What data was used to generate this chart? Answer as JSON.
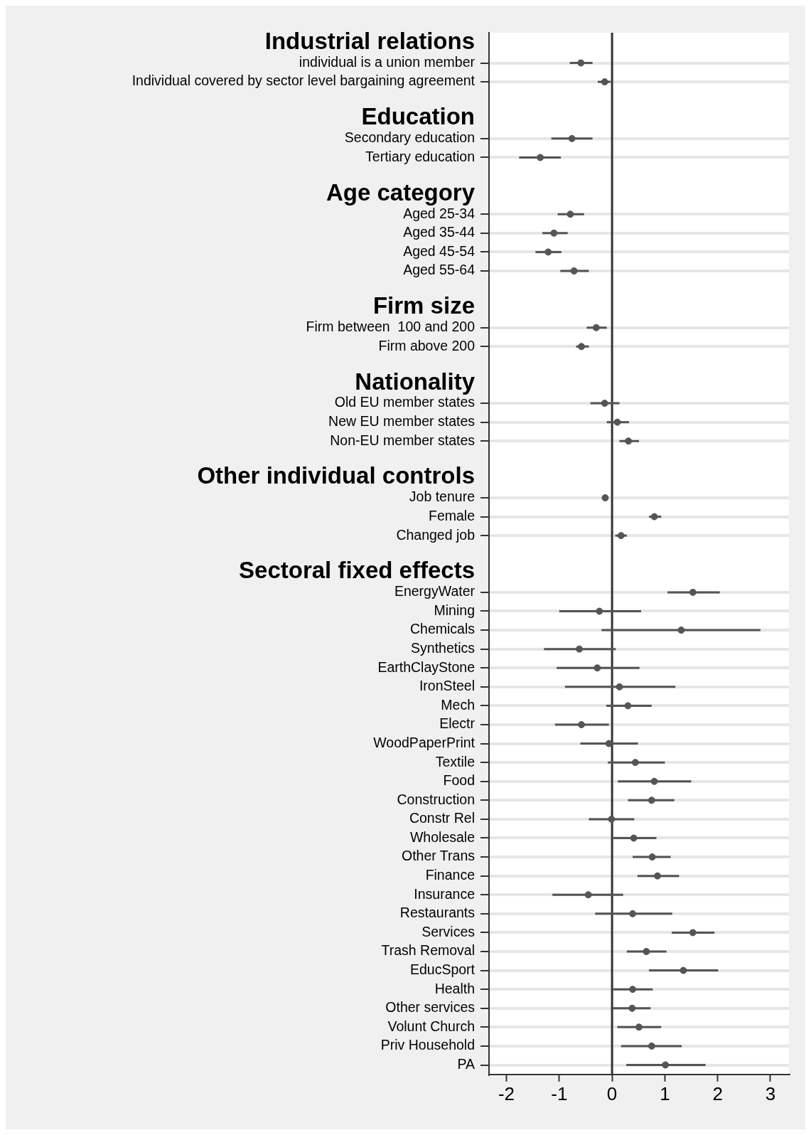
{
  "chart_data": {
    "type": "scatter",
    "orientation": "horizontal",
    "color": "#555555",
    "marker": "circle",
    "grid": "y",
    "xlim": [
      -2.33,
      3.35
    ],
    "xticks": [
      -2,
      -1,
      0,
      1,
      2,
      3
    ],
    "ref_lines": [
      {
        "axis": "x",
        "value": 0,
        "color": "#333333"
      }
    ],
    "annotations": [
      "Industrial relations",
      "Education",
      "Age category",
      "Firm size",
      "Nationality",
      "Other individual controls",
      "Sectoral fixed effects"
    ],
    "categories": [
      null,
      "individual is a union member",
      "Individual covered by sector level bargaining agreement",
      null,
      null,
      "Secondary education",
      "Tertiary education",
      null,
      null,
      "Aged 25-34",
      "Aged 35-44",
      "Aged 45-54",
      "Aged 55-64",
      null,
      null,
      "Firm between  100 and 200",
      "Firm above 200",
      null,
      null,
      "Old EU member states",
      "New EU member states",
      "Non-EU member states",
      null,
      null,
      "Job tenure",
      "Female",
      "Changed job",
      null,
      null,
      "EnergyWater",
      "Mining",
      "Chemicals",
      "Synthetics",
      "EarthClayStone",
      "IronSteel",
      "Mech",
      "Electr",
      "WoodPaperPrint",
      "Textile",
      "Food",
      "Construction",
      "Constr Rel",
      "Wholesale",
      "Other Trans",
      "Finance",
      "Insurance",
      "Restaurants",
      "Services",
      "Trash Removal",
      "EducSport",
      "Health",
      "Other services",
      "Volunt Church",
      "Priv Household",
      "PA"
    ],
    "values": [
      null,
      -0.59,
      -0.14,
      null,
      null,
      -0.76,
      -1.36,
      null,
      null,
      -0.79,
      -1.1,
      -1.21,
      -0.72,
      null,
      null,
      -0.3,
      -0.58,
      null,
      null,
      -0.14,
      0.1,
      0.31,
      null,
      null,
      -0.13,
      0.8,
      0.17,
      null,
      null,
      1.53,
      -0.24,
      1.31,
      -0.62,
      -0.28,
      0.14,
      0.3,
      -0.58,
      -0.06,
      0.44,
      0.8,
      0.75,
      -0.01,
      0.41,
      0.76,
      0.86,
      -0.45,
      0.39,
      1.53,
      0.65,
      1.35,
      0.39,
      0.38,
      0.51,
      0.75,
      1.01
    ],
    "errors": [
      null,
      [
        -0.8,
        -0.37
      ],
      [
        -0.27,
        -0.03
      ],
      null,
      null,
      [
        -1.15,
        -0.37
      ],
      [
        -1.76,
        -0.97
      ],
      null,
      null,
      [
        -1.03,
        -0.53
      ],
      [
        -1.32,
        -0.84
      ],
      [
        -1.45,
        -0.96
      ],
      [
        -0.98,
        -0.44
      ],
      null,
      null,
      [
        -0.48,
        -0.1
      ],
      [
        -0.68,
        -0.44
      ],
      null,
      null,
      [
        -0.41,
        0.14
      ],
      [
        -0.1,
        0.32
      ],
      [
        0.14,
        0.51
      ],
      null,
      null,
      [
        -0.16,
        -0.1
      ],
      [
        0.7,
        0.93
      ],
      [
        0.06,
        0.28
      ],
      null,
      null,
      [
        1.05,
        2.04
      ],
      [
        -1.0,
        0.55
      ],
      [
        -0.2,
        2.81
      ],
      [
        -1.29,
        0.07
      ],
      [
        -1.05,
        0.52
      ],
      [
        -0.89,
        1.2
      ],
      [
        -0.11,
        0.75
      ],
      [
        -1.08,
        -0.06
      ],
      [
        -0.6,
        0.49
      ],
      [
        -0.08,
        1.0
      ],
      [
        0.11,
        1.5
      ],
      [
        0.3,
        1.18
      ],
      [
        -0.44,
        0.42
      ],
      [
        0.0,
        0.84
      ],
      [
        0.39,
        1.11
      ],
      [
        0.48,
        1.27
      ],
      [
        -1.13,
        0.21
      ],
      [
        -0.32,
        1.14
      ],
      [
        1.13,
        1.94
      ],
      [
        0.28,
        1.03
      ],
      [
        0.7,
        2.01
      ],
      [
        0.01,
        0.77
      ],
      [
        0.01,
        0.73
      ],
      [
        0.1,
        0.93
      ],
      [
        0.17,
        1.32
      ],
      [
        0.27,
        1.77
      ]
    ]
  }
}
